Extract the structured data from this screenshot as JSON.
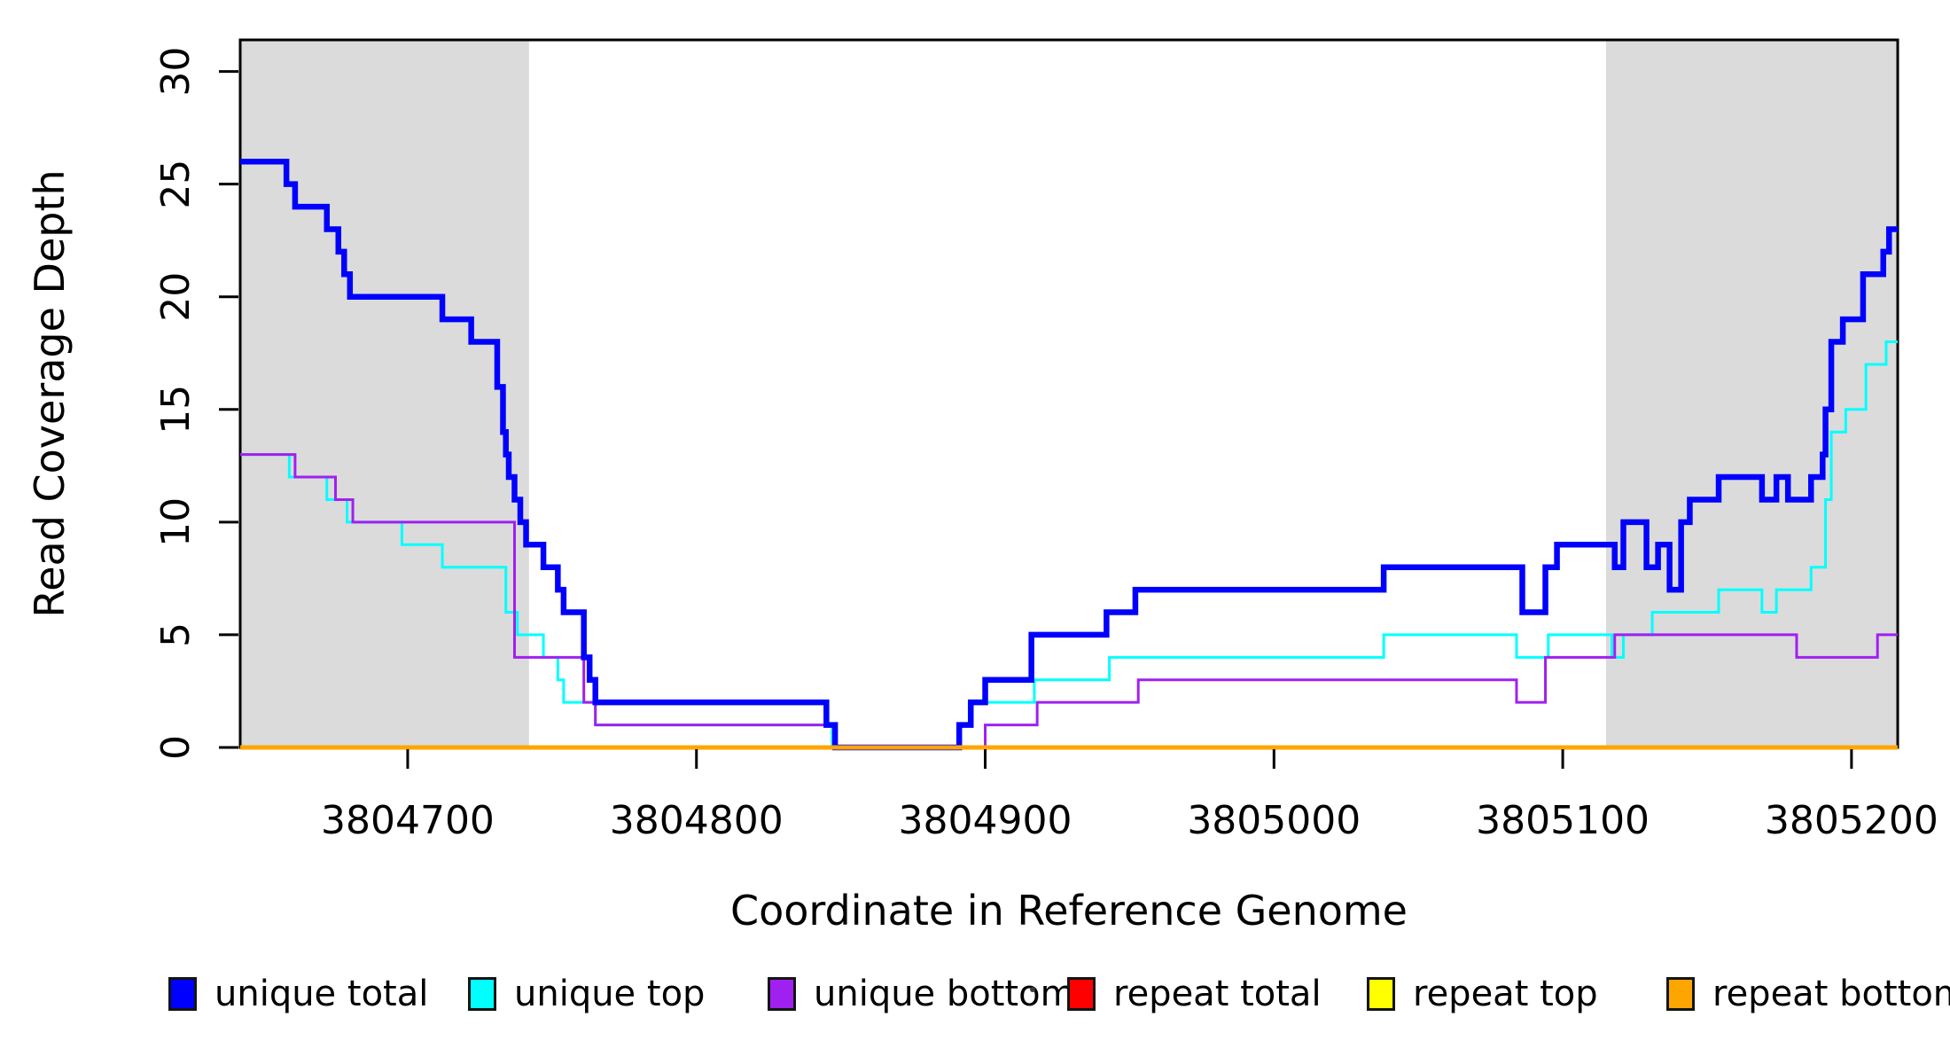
{
  "chart_data": {
    "type": "line",
    "subtype": "step-after",
    "title": "",
    "xlabel": "Coordinate in Reference Genome",
    "ylabel": "Read Coverage Depth",
    "xlim": [
      3804642,
      3805216
    ],
    "ylim": [
      0,
      31.4
    ],
    "x_ticks": [
      3804700,
      3804800,
      3804900,
      3805000,
      3805100,
      3805200
    ],
    "x_tick_labels": [
      "3804700",
      "3804800",
      "3804900",
      "3805000",
      "3805100",
      "3805200"
    ],
    "y_ticks": [
      0,
      5,
      10,
      15,
      20,
      25,
      30
    ],
    "y_tick_labels": [
      "0",
      "5",
      "10",
      "15",
      "20",
      "25",
      "30"
    ],
    "grid": false,
    "legend_position": "bottom",
    "background_color": "#ffffff",
    "highlight_color": "#dbdbdb",
    "highlight_regions": [
      {
        "x0": 3804642,
        "x1": 3804742
      },
      {
        "x0": 3805115,
        "x1": 3805216
      }
    ],
    "series": [
      {
        "name": "unique total",
        "color": "#0000ff",
        "line_width": 6.5,
        "steps": [
          [
            3804642,
            26
          ],
          [
            3804658,
            25
          ],
          [
            3804661,
            24
          ],
          [
            3804672,
            23
          ],
          [
            3804676,
            22
          ],
          [
            3804678,
            21
          ],
          [
            3804680,
            20
          ],
          [
            3804712,
            19
          ],
          [
            3804722,
            18
          ],
          [
            3804731,
            16
          ],
          [
            3804733,
            14
          ],
          [
            3804734,
            13
          ],
          [
            3804735,
            12
          ],
          [
            3804737,
            11
          ],
          [
            3804739,
            10
          ],
          [
            3804741,
            9
          ],
          [
            3804747,
            8
          ],
          [
            3804752,
            7
          ],
          [
            3804754,
            6
          ],
          [
            3804761,
            4
          ],
          [
            3804763,
            3
          ],
          [
            3804765,
            2
          ],
          [
            3804845,
            1
          ],
          [
            3804848,
            0
          ],
          [
            3804891,
            1
          ],
          [
            3804895,
            2
          ],
          [
            3804900,
            3
          ],
          [
            3804916,
            5
          ],
          [
            3804942,
            6
          ],
          [
            3804952,
            7
          ],
          [
            3805038,
            8
          ],
          [
            3805086,
            6
          ],
          [
            3805094,
            8
          ],
          [
            3805098,
            9
          ],
          [
            3805118,
            8
          ],
          [
            3805121,
            10
          ],
          [
            3805129,
            8
          ],
          [
            3805133,
            9
          ],
          [
            3805137,
            7
          ],
          [
            3805141,
            10
          ],
          [
            3805144,
            11
          ],
          [
            3805154,
            12
          ],
          [
            3805169,
            11
          ],
          [
            3805174,
            12
          ],
          [
            3805178,
            11
          ],
          [
            3805186,
            12
          ],
          [
            3805190,
            13
          ],
          [
            3805191,
            15
          ],
          [
            3805193,
            18
          ],
          [
            3805197,
            19
          ],
          [
            3805204,
            21
          ],
          [
            3805211,
            22
          ],
          [
            3805213,
            23
          ]
        ]
      },
      {
        "name": "unique top",
        "color": "#00ffff",
        "line_width": 3,
        "steps": [
          [
            3804642,
            13
          ],
          [
            3804659,
            12
          ],
          [
            3804672,
            11
          ],
          [
            3804679,
            10
          ],
          [
            3804698,
            9
          ],
          [
            3804712,
            8
          ],
          [
            3804734,
            6
          ],
          [
            3804738,
            5
          ],
          [
            3804747,
            4
          ],
          [
            3804752,
            3
          ],
          [
            3804754,
            2
          ],
          [
            3804765,
            1
          ],
          [
            3804847,
            0
          ],
          [
            3804891,
            1
          ],
          [
            3804895,
            2
          ],
          [
            3804917,
            3
          ],
          [
            3804943,
            4
          ],
          [
            3805038,
            5
          ],
          [
            3805084,
            4
          ],
          [
            3805095,
            5
          ],
          [
            3805117,
            4
          ],
          [
            3805121,
            5
          ],
          [
            3805131,
            6
          ],
          [
            3805154,
            7
          ],
          [
            3805169,
            6
          ],
          [
            3805174,
            7
          ],
          [
            3805186,
            8
          ],
          [
            3805191,
            11
          ],
          [
            3805193,
            14
          ],
          [
            3805198,
            15
          ],
          [
            3805205,
            17
          ],
          [
            3805212,
            18
          ]
        ]
      },
      {
        "name": "unique bottom",
        "color": "#a020f0",
        "line_width": 3,
        "steps": [
          [
            3804642,
            13
          ],
          [
            3804661,
            12
          ],
          [
            3804675,
            11
          ],
          [
            3804681,
            10
          ],
          [
            3804737,
            4
          ],
          [
            3804761,
            2
          ],
          [
            3804765,
            1
          ],
          [
            3804848,
            0
          ],
          [
            3804900,
            1
          ],
          [
            3804918,
            2
          ],
          [
            3804953,
            3
          ],
          [
            3805084,
            2
          ],
          [
            3805094,
            4
          ],
          [
            3805118,
            5
          ],
          [
            3805181,
            4
          ],
          [
            3805209,
            5
          ]
        ]
      },
      {
        "name": "repeat total",
        "color": "#ff0000",
        "line_width": 3,
        "steps": [
          [
            3804642,
            0
          ]
        ]
      },
      {
        "name": "repeat top",
        "color": "#ffff00",
        "line_width": 3,
        "steps": [
          [
            3804642,
            0
          ]
        ]
      },
      {
        "name": "repeat bottom",
        "color": "#ffa500",
        "line_width": 5,
        "steps": [
          [
            3804642,
            0
          ]
        ]
      }
    ],
    "draw_order": [
      1,
      2,
      0,
      3,
      4,
      5
    ]
  }
}
